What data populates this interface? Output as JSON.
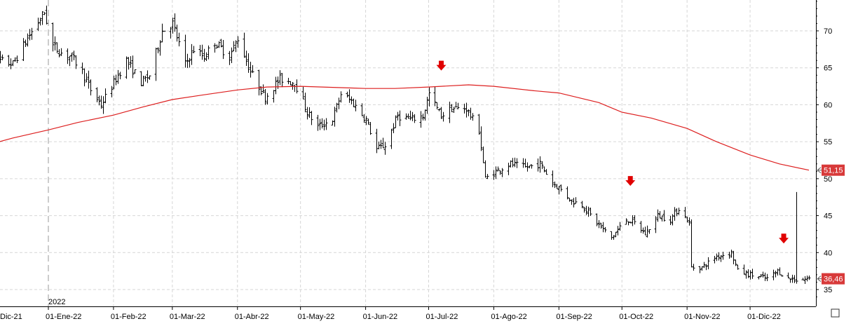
{
  "chart_data": {
    "type": "ohlc",
    "title": "",
    "year_marker": "2022",
    "x_tick_labels": [
      "Dic-21",
      "01-Ene-22",
      "01-Feb-22",
      "01-Mar-22",
      "01-Abr-22",
      "01-May-22",
      "01-Jun-22",
      "01-Jul-22",
      "01-Ago-22",
      "01-Sep-22",
      "01-Oct-22",
      "01-Nov-22",
      "01-Dic-22"
    ],
    "x_ticks": [
      "2021-12-01",
      "2022-01-01",
      "2022-02-01",
      "2022-03-01",
      "2022-04-01",
      "2022-05-01",
      "2022-06-01",
      "2022-07-01",
      "2022-08-01",
      "2022-09-01",
      "2022-10-01",
      "2022-11-01",
      "2022-12-01"
    ],
    "y_ticks": [
      35,
      40,
      45,
      50,
      55,
      60,
      65,
      70
    ],
    "y_tick_labels": [
      "35",
      "40",
      "45",
      "50",
      "55",
      "60",
      "65",
      "70"
    ],
    "ylim": [
      33.4,
      74.3
    ],
    "xlim": [
      "2021-12-01",
      "2022-12-31"
    ],
    "grid": true,
    "y_axis_side": "right",
    "price_path": [
      [
        "2021-12-01",
        64.5
      ],
      [
        "2021-12-08",
        66
      ],
      [
        "2021-12-15",
        65.5
      ],
      [
        "2021-12-22",
        69
      ],
      [
        "2021-12-30",
        72.5
      ],
      [
        "2022-01-03",
        68
      ],
      [
        "2022-01-07",
        67
      ],
      [
        "2022-01-12",
        66.5
      ],
      [
        "2022-01-17",
        64.5
      ],
      [
        "2022-01-21",
        62
      ],
      [
        "2022-01-26",
        60
      ],
      [
        "2022-01-31",
        62.5
      ],
      [
        "2022-02-07",
        66
      ],
      [
        "2022-02-14",
        63
      ],
      [
        "2022-02-18",
        64
      ],
      [
        "2022-02-24",
        70
      ],
      [
        "2022-03-01",
        71
      ],
      [
        "2022-03-07",
        65.5
      ],
      [
        "2022-03-11",
        67.5
      ],
      [
        "2022-03-16",
        66.5
      ],
      [
        "2022-03-21",
        68.5
      ],
      [
        "2022-03-28",
        66.5
      ],
      [
        "2022-04-01",
        69
      ],
      [
        "2022-04-07",
        64.5
      ],
      [
        "2022-04-14",
        61
      ],
      [
        "2022-04-21",
        63.5
      ],
      [
        "2022-04-28",
        63
      ],
      [
        "2022-05-04",
        59
      ],
      [
        "2022-05-09",
        57
      ],
      [
        "2022-05-16",
        58
      ],
      [
        "2022-05-20",
        61.5
      ],
      [
        "2022-05-25",
        60.5
      ],
      [
        "2022-06-01",
        58
      ],
      [
        "2022-06-06",
        54
      ],
      [
        "2022-06-10",
        54.5
      ],
      [
        "2022-06-16",
        58.5
      ],
      [
        "2022-06-22",
        58
      ],
      [
        "2022-06-28",
        58.5
      ],
      [
        "2022-07-01",
        61.5
      ],
      [
        "2022-07-07",
        58.5
      ],
      [
        "2022-07-12",
        59.5
      ],
      [
        "2022-07-19",
        59.5
      ],
      [
        "2022-07-25",
        56.5
      ],
      [
        "2022-07-28",
        50
      ],
      [
        "2022-08-02",
        51
      ],
      [
        "2022-08-09",
        52
      ],
      [
        "2022-08-16",
        51.5
      ],
      [
        "2022-08-23",
        52
      ],
      [
        "2022-08-29",
        49.5
      ],
      [
        "2022-09-02",
        48.5
      ],
      [
        "2022-09-07",
        47
      ],
      [
        "2022-09-12",
        46.5
      ],
      [
        "2022-09-19",
        44
      ],
      [
        "2022-09-26",
        42
      ],
      [
        "2022-10-03",
        44.5
      ],
      [
        "2022-10-07",
        44
      ],
      [
        "2022-10-12",
        42.5
      ],
      [
        "2022-10-18",
        45
      ],
      [
        "2022-10-24",
        44.5
      ],
      [
        "2022-10-28",
        46
      ],
      [
        "2022-11-02",
        44
      ],
      [
        "2022-11-03",
        38
      ],
      [
        "2022-11-08",
        38
      ],
      [
        "2022-11-15",
        39.5
      ],
      [
        "2022-11-22",
        40
      ],
      [
        "2022-11-25",
        37.5
      ],
      [
        "2022-12-01",
        37
      ],
      [
        "2022-12-09",
        36.5
      ],
      [
        "2022-12-14",
        37.5
      ],
      [
        "2022-12-19",
        36.5
      ],
      [
        "2022-12-23",
        36.3
      ],
      [
        "2022-12-29",
        36.46
      ]
    ],
    "spike": {
      "x": "2022-12-23",
      "high": 48.2,
      "low": 35.8
    },
    "series": [
      {
        "name": "",
        "kind": "moving-average",
        "color": "#dd1f1f",
        "points": [
          [
            "2021-12-01",
            54.4
          ],
          [
            "2021-12-15",
            55.5
          ],
          [
            "2022-01-01",
            56.6
          ],
          [
            "2022-01-15",
            57.6
          ],
          [
            "2022-02-01",
            58.6
          ],
          [
            "2022-02-15",
            59.7
          ],
          [
            "2022-03-01",
            60.7
          ],
          [
            "2022-03-15",
            61.3
          ],
          [
            "2022-04-01",
            62.0
          ],
          [
            "2022-04-15",
            62.4
          ],
          [
            "2022-05-01",
            62.5
          ],
          [
            "2022-06-01",
            62.2
          ],
          [
            "2022-06-15",
            62.2
          ],
          [
            "2022-07-01",
            62.4
          ],
          [
            "2022-07-20",
            62.7
          ],
          [
            "2022-08-01",
            62.5
          ],
          [
            "2022-08-20",
            61.9
          ],
          [
            "2022-09-01",
            61.6
          ],
          [
            "2022-09-20",
            60.3
          ],
          [
            "2022-10-01",
            59.0
          ],
          [
            "2022-10-15",
            58.2
          ],
          [
            "2022-11-01",
            56.8
          ],
          [
            "2022-11-15",
            55.0
          ],
          [
            "2022-12-01",
            53.2
          ],
          [
            "2022-12-15",
            52.0
          ],
          [
            "2022-12-29",
            51.15
          ]
        ]
      }
    ],
    "last_labels": [
      {
        "text": "51,15",
        "value": 51.15,
        "color": "#d83a3a"
      },
      {
        "text": "36,46",
        "value": 36.46,
        "color": "#d83a3a"
      }
    ],
    "signals": [
      {
        "x": "2022-07-07",
        "value": 65.2,
        "color": "#e00000"
      },
      {
        "x": "2022-10-05",
        "value": 49.6,
        "color": "#e00000"
      },
      {
        "x": "2022-12-17",
        "value": 41.8,
        "color": "#e00000"
      }
    ]
  }
}
